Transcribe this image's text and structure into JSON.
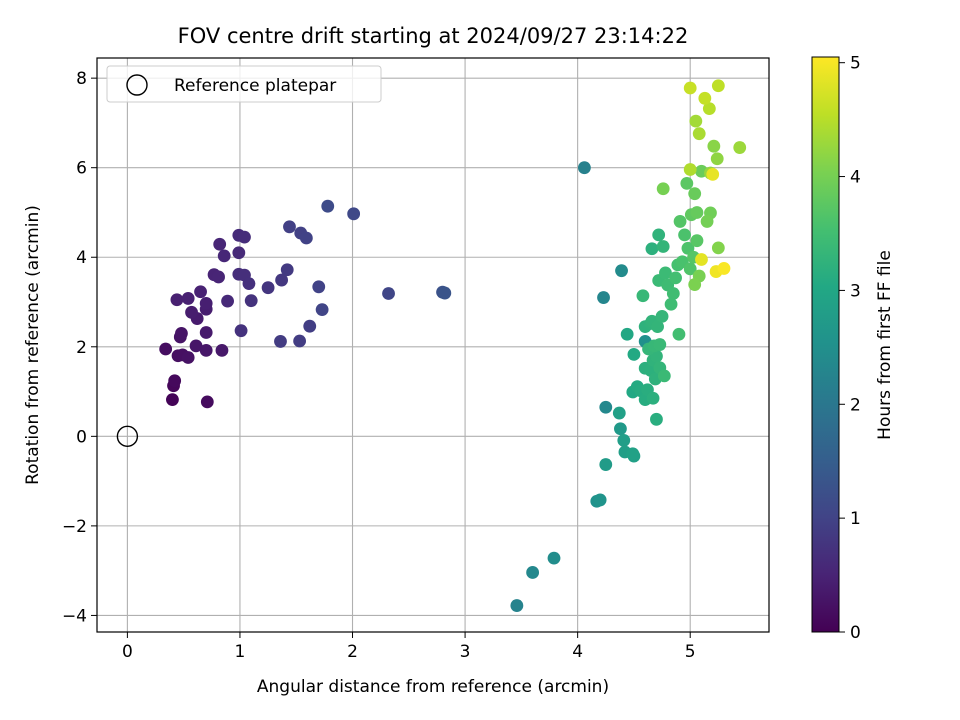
{
  "chart_data": {
    "type": "scatter",
    "title": "FOV centre drift starting at 2024/09/27 23:14:22",
    "xlabel": "Angular distance from reference (arcmin)",
    "ylabel": "Rotation from reference (arcmin)",
    "xlim": [
      -0.27,
      5.7
    ],
    "ylim": [
      -4.37,
      8.45
    ],
    "xticks": [
      "0",
      "1",
      "2",
      "3",
      "4",
      "5"
    ],
    "yticks": [
      "−4",
      "−2",
      "0",
      "2",
      "4",
      "6",
      "8"
    ],
    "grid": true,
    "legend": {
      "placement": "upper-left",
      "entries": [
        "Reference platepar"
      ]
    },
    "reference": {
      "name": "Reference platepar",
      "x": 0,
      "y": 0
    },
    "colorbar": {
      "label": "Hours from first FF file",
      "range": [
        0,
        5.05
      ],
      "ticks": [
        "0",
        "1",
        "2",
        "3",
        "4",
        "5"
      ],
      "colormap": "viridis"
    },
    "points": [
      [
        0.4,
        0.82,
        0.05
      ],
      [
        0.41,
        1.13,
        0.08
      ],
      [
        0.42,
        1.24,
        0.12
      ],
      [
        0.71,
        0.77,
        0.15
      ],
      [
        0.34,
        1.95,
        0.18
      ],
      [
        0.45,
        1.8,
        0.2
      ],
      [
        0.49,
        1.82,
        0.22
      ],
      [
        0.54,
        1.76,
        0.24
      ],
      [
        0.47,
        2.22,
        0.26
      ],
      [
        0.48,
        2.3,
        0.28
      ],
      [
        0.61,
        2.02,
        0.3
      ],
      [
        0.7,
        1.92,
        0.32
      ],
      [
        0.84,
        1.92,
        0.34
      ],
      [
        0.7,
        2.32,
        0.36
      ],
      [
        0.62,
        2.63,
        0.38
      ],
      [
        0.57,
        2.77,
        0.4
      ],
      [
        0.7,
        2.84,
        0.42
      ],
      [
        0.7,
        2.97,
        0.44
      ],
      [
        0.44,
        3.05,
        0.45
      ],
      [
        0.54,
        3.08,
        0.46
      ],
      [
        0.65,
        3.23,
        0.48
      ],
      [
        0.77,
        3.61,
        0.5
      ],
      [
        0.81,
        3.56,
        0.52
      ],
      [
        0.82,
        4.29,
        0.54
      ],
      [
        0.86,
        4.03,
        0.56
      ],
      [
        0.89,
        3.02,
        0.58
      ],
      [
        0.99,
        4.1,
        0.6
      ],
      [
        0.99,
        4.49,
        0.62
      ],
      [
        1.04,
        4.45,
        0.64
      ],
      [
        0.99,
        3.62,
        0.66
      ],
      [
        1.04,
        3.6,
        0.68
      ],
      [
        1.08,
        3.41,
        0.7
      ],
      [
        1.01,
        2.36,
        0.72
      ],
      [
        1.1,
        3.03,
        0.74
      ],
      [
        1.25,
        3.32,
        0.78
      ],
      [
        1.37,
        3.49,
        0.82
      ],
      [
        1.42,
        3.72,
        0.85
      ],
      [
        1.36,
        2.12,
        0.88
      ],
      [
        1.53,
        2.13,
        0.9
      ],
      [
        1.62,
        2.46,
        0.92
      ],
      [
        1.44,
        4.68,
        0.94
      ],
      [
        1.54,
        4.54,
        0.96
      ],
      [
        1.59,
        4.43,
        0.98
      ],
      [
        1.7,
        3.34,
        1.0
      ],
      [
        1.73,
        2.83,
        1.02
      ],
      [
        1.78,
        5.14,
        1.15
      ],
      [
        2.01,
        4.97,
        1.1
      ],
      [
        2.32,
        3.19,
        1.05
      ],
      [
        2.8,
        3.22,
        1.28
      ],
      [
        2.82,
        3.2,
        1.3
      ],
      [
        4.06,
        6.0,
        2.2
      ],
      [
        4.23,
        3.1,
        2.3
      ],
      [
        4.39,
        3.7,
        2.4
      ],
      [
        4.6,
        2.12,
        2.5
      ],
      [
        4.25,
        0.65,
        2.35
      ],
      [
        3.46,
        -3.78,
        2.25
      ],
      [
        3.6,
        -3.04,
        2.35
      ],
      [
        3.79,
        -2.72,
        2.45
      ],
      [
        4.17,
        -1.45,
        2.55
      ],
      [
        4.2,
        -1.42,
        2.6
      ],
      [
        4.25,
        -0.63,
        2.75
      ],
      [
        4.38,
        0.17,
        2.7
      ],
      [
        4.41,
        -0.09,
        2.8
      ],
      [
        4.42,
        -0.35,
        2.82
      ],
      [
        4.5,
        -0.44,
        2.85
      ],
      [
        4.49,
        -0.39,
        2.88
      ],
      [
        4.37,
        0.52,
        2.85
      ],
      [
        4.44,
        2.28,
        3.0
      ],
      [
        4.5,
        1.83,
        3.05
      ],
      [
        4.49,
        0.99,
        3.02
      ],
      [
        4.53,
        1.11,
        3.08
      ],
      [
        4.56,
        1.02,
        3.1
      ],
      [
        4.6,
        0.82,
        3.12
      ],
      [
        4.62,
        1.04,
        3.15
      ],
      [
        4.6,
        1.52,
        3.18
      ],
      [
        4.65,
        1.47,
        3.2
      ],
      [
        4.69,
        1.28,
        3.22
      ],
      [
        4.67,
        1.7,
        3.25
      ],
      [
        4.7,
        1.79,
        3.28
      ],
      [
        4.73,
        1.53,
        3.3
      ],
      [
        4.67,
        0.85,
        3.18
      ],
      [
        4.7,
        0.38,
        3.15
      ],
      [
        4.63,
        1.95,
        3.32
      ],
      [
        4.68,
        2.02,
        3.35
      ],
      [
        4.73,
        2.05,
        3.38
      ],
      [
        4.77,
        1.35,
        3.4
      ],
      [
        4.6,
        2.45,
        3.22
      ],
      [
        4.65,
        2.52,
        3.25
      ],
      [
        4.66,
        2.57,
        3.28
      ],
      [
        4.71,
        2.45,
        3.3
      ],
      [
        4.75,
        2.68,
        3.32
      ],
      [
        4.58,
        3.14,
        3.35
      ],
      [
        4.66,
        4.19,
        3.2
      ],
      [
        4.72,
        4.5,
        3.25
      ],
      [
        4.76,
        4.24,
        3.3
      ],
      [
        4.72,
        3.48,
        3.4
      ],
      [
        4.78,
        3.65,
        3.42
      ],
      [
        4.8,
        3.38,
        3.45
      ],
      [
        4.85,
        3.19,
        3.48
      ],
      [
        4.9,
        2.28,
        3.5
      ],
      [
        4.83,
        2.95,
        3.46
      ],
      [
        4.87,
        3.54,
        3.52
      ],
      [
        4.89,
        3.83,
        3.55
      ],
      [
        4.93,
        3.9,
        3.58
      ],
      [
        4.95,
        4.5,
        3.6
      ],
      [
        4.98,
        4.2,
        3.62
      ],
      [
        5.0,
        3.74,
        3.65
      ],
      [
        4.91,
        4.8,
        3.68
      ],
      [
        5.03,
        4.0,
        3.7
      ],
      [
        5.06,
        4.37,
        3.72
      ],
      [
        4.97,
        5.65,
        3.75
      ],
      [
        5.01,
        4.95,
        3.8
      ],
      [
        5.06,
        5.0,
        3.85
      ],
      [
        5.04,
        5.42,
        3.88
      ],
      [
        5.1,
        5.92,
        3.9
      ],
      [
        5.18,
        4.99,
        3.95
      ],
      [
        5.15,
        4.8,
        3.98
      ],
      [
        4.76,
        5.53,
        4.0
      ],
      [
        5.08,
        3.58,
        4.02
      ],
      [
        5.04,
        3.39,
        4.05
      ],
      [
        5.25,
        4.21,
        4.1
      ],
      [
        5.21,
        6.48,
        4.15
      ],
      [
        5.24,
        6.2,
        4.2
      ],
      [
        5.18,
        5.88,
        4.25
      ],
      [
        5.44,
        6.45,
        4.3
      ],
      [
        5.05,
        7.04,
        4.35
      ],
      [
        5.08,
        6.76,
        4.4
      ],
      [
        5.0,
        5.96,
        4.45
      ],
      [
        5.17,
        7.32,
        4.5
      ],
      [
        5.25,
        7.83,
        4.55
      ],
      [
        5.13,
        7.55,
        4.6
      ],
      [
        5.0,
        7.78,
        4.62
      ],
      [
        5.1,
        3.95,
        4.85
      ],
      [
        5.2,
        5.85,
        4.88
      ],
      [
        5.23,
        3.68,
        4.95
      ],
      [
        5.3,
        3.75,
        5.02
      ]
    ]
  }
}
